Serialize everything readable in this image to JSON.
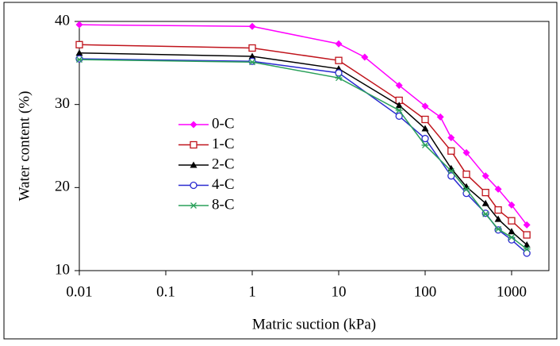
{
  "chart_data": {
    "type": "line",
    "x_label": "Matric suction (kPa)",
    "y_label": "Water content (%)",
    "xscale": "log",
    "xlim": [
      0.01,
      2700
    ],
    "xticks": [
      0.01,
      0.1,
      1,
      10,
      100,
      1000
    ],
    "ylim": [
      10,
      40
    ],
    "yticks": [
      10,
      20,
      30,
      40
    ],
    "grid": false,
    "legend": "center-left",
    "series": [
      {
        "name": "0-C",
        "color": "#ff00ff",
        "marker": "diamond",
        "x": [
          0.01,
          1,
          10,
          20,
          50,
          100,
          150,
          200,
          300,
          500,
          700,
          1000,
          1500
        ],
        "values": [
          39.6,
          39.4,
          37.3,
          35.7,
          32.3,
          29.8,
          28.5,
          26.0,
          24.2,
          21.4,
          19.8,
          17.9,
          15.5
        ]
      },
      {
        "name": "1-C",
        "color": "#c0141c",
        "marker": "square",
        "x": [
          0.01,
          1,
          10,
          50,
          100,
          200,
          300,
          500,
          700,
          1000,
          1500
        ],
        "values": [
          37.2,
          36.8,
          35.3,
          30.5,
          28.2,
          24.4,
          21.6,
          19.4,
          17.3,
          16.0,
          14.3
        ]
      },
      {
        "name": "2-C",
        "color": "#000000",
        "marker": "triangle",
        "x": [
          0.01,
          1,
          10,
          50,
          100,
          200,
          300,
          500,
          700,
          1000,
          1500
        ],
        "values": [
          36.2,
          35.8,
          34.3,
          29.9,
          27.1,
          22.3,
          20.1,
          18.1,
          16.2,
          14.7,
          13.1
        ]
      },
      {
        "name": "4-C",
        "color": "#2a2ad0",
        "marker": "circle",
        "x": [
          0.01,
          1,
          10,
          50,
          100,
          200,
          300,
          500,
          700,
          1000,
          1500
        ],
        "values": [
          35.5,
          35.2,
          33.8,
          28.6,
          25.9,
          21.4,
          19.3,
          16.9,
          14.9,
          13.7,
          12.1
        ]
      },
      {
        "name": "8-C",
        "color": "#2aa05a",
        "marker": "star",
        "x": [
          0.01,
          1,
          10,
          50,
          100,
          200,
          300,
          500,
          700,
          1000,
          1500
        ],
        "values": [
          35.4,
          35.1,
          33.2,
          29.3,
          25.1,
          22.0,
          19.8,
          16.8,
          15.0,
          14.0,
          12.6
        ]
      }
    ]
  }
}
